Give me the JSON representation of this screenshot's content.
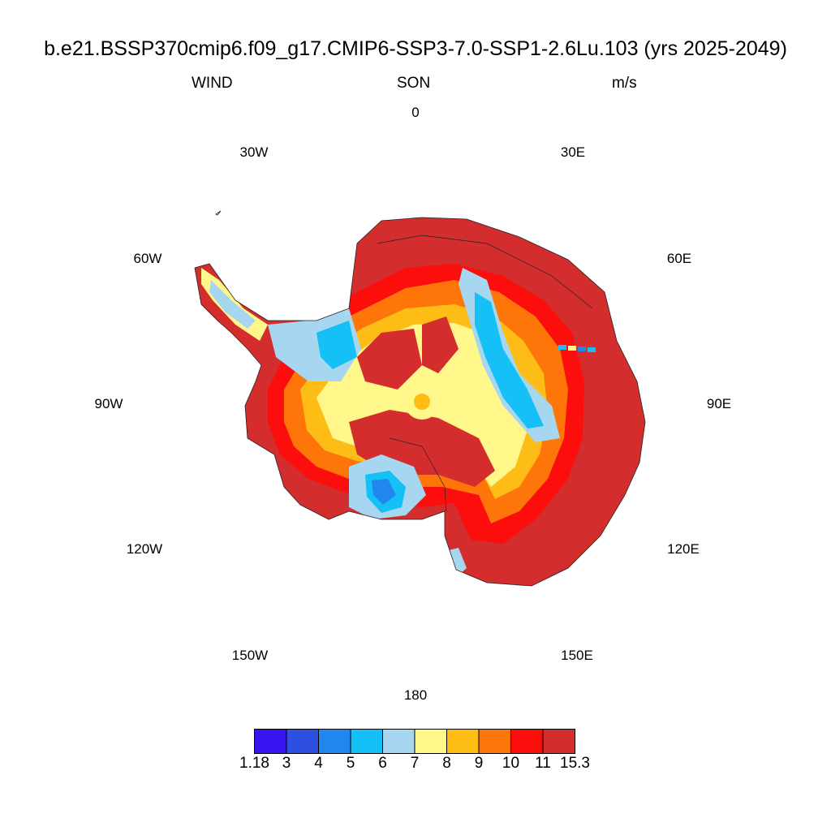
{
  "title": "b.e21.BSSP370cmip6.f09_g17.CMIP6-SSP3-7.0-SSP1-2.6Lu.103 (yrs 2025-2049)",
  "left_label": "WIND",
  "center_label": "SON",
  "right_label": "m/s",
  "longitude_labels": {
    "lon_0": "0",
    "lon_30e": "30E",
    "lon_60e": "60E",
    "lon_90e": "90E",
    "lon_120e": "120E",
    "lon_150e": "150E",
    "lon_180": "180",
    "lon_150w": "150W",
    "lon_120w": "120W",
    "lon_90w": "90W",
    "lon_60w": "60W",
    "lon_30w": "30W"
  },
  "colorbar": {
    "colors": [
      "#3a14f0",
      "#2e50e0",
      "#2286ef",
      "#14c0f5",
      "#a6d6f0",
      "#fff78a",
      "#fdbd16",
      "#fe7509",
      "#fb0e0c",
      "#d32d2e"
    ],
    "labels": [
      "1.18",
      "3",
      "4",
      "5",
      "6",
      "7",
      "8",
      "9",
      "10",
      "11",
      "15.3"
    ]
  },
  "map": {
    "projection": "south-polar-stereographic",
    "variable": "WIND"
  }
}
